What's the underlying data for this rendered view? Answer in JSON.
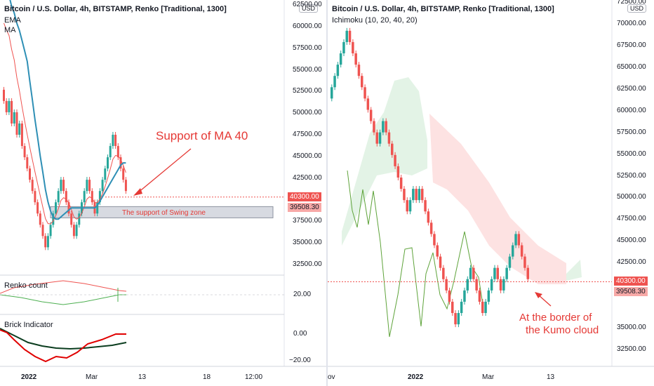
{
  "left": {
    "title": "Bitcoin / U.S. Dollar, 4h, BITSTAMP, Renko [Traditional, 1300]",
    "legend": [
      "EMA",
      "MA"
    ],
    "currency_badge": "USD",
    "price_axis": [
      "62500.00",
      "60000.00",
      "57500.00",
      "55000.00",
      "52500.00",
      "50000.00",
      "47500.00",
      "45000.00",
      "42500.00",
      "37500.00",
      "35000.00",
      "32500.00"
    ],
    "last_price": "40300.00",
    "secondary_price": "39508.30",
    "annotation_main": "Support of MA 40",
    "annotation_zone": "The support of Swing zone",
    "renko_count_label": "Renko count",
    "renko_count_value": "20.00",
    "brick_indicator_label": "Brick Indicator",
    "brick_axis": [
      "0.00",
      "−20.00"
    ],
    "time_axis": [
      "2022",
      "Mar",
      "13",
      "18",
      "12:00"
    ]
  },
  "right": {
    "title": "Bitcoin / U.S. Dollar, 4h, BITSTAMP, Renko [Traditional, 1300]",
    "legend": [
      "Ichimoku (10, 20, 40, 20)"
    ],
    "currency_badge": "USD",
    "price_axis": [
      "72500.00",
      "70000.00",
      "67500.00",
      "65000.00",
      "62500.00",
      "60000.00",
      "57500.00",
      "55000.00",
      "52500.00",
      "50000.00",
      "47500.00",
      "45000.00",
      "42500.00",
      "35000.00",
      "32500.00"
    ],
    "last_price": "40300.00",
    "secondary_price": "39508.30",
    "annotation": [
      "At the border of",
      "the Kumo cloud"
    ],
    "time_axis": [
      "ov",
      "2022",
      "Mar",
      "13"
    ]
  },
  "colors": {
    "up": "#26a69a",
    "down": "#ef5350",
    "ema": "#ef5350",
    "ma": "#2e8fb5",
    "annotation": "#e53935",
    "kumo_bull": "#e3f3e6",
    "kumo_bear": "#fde2e2",
    "chikou": "#5ea33a"
  },
  "chart_data": [
    {
      "type": "renko",
      "panel": "left",
      "title": "Bitcoin / U.S. Dollar, 4h, BITSTAMP, Renko [Traditional, 1300]",
      "brick_size": 1300,
      "indicators": [
        "EMA",
        "MA",
        "Renko count",
        "Brick Indicator"
      ],
      "ylim": [
        32500,
        62500
      ],
      "last_price": 40300,
      "support_zone": [
        37900,
        39200
      ],
      "bricks_close": [
        51400,
        50100,
        51400,
        48800,
        50100,
        47500,
        48800,
        46200,
        44900,
        43600,
        42300,
        41000,
        39700,
        38400,
        37100,
        35800,
        34500,
        35800,
        37100,
        38400,
        39700,
        41000,
        42300,
        41000,
        39700,
        38400,
        37100,
        35800,
        37100,
        38400,
        39700,
        41000,
        42300,
        41000,
        39700,
        38400,
        39700,
        41000,
        42300,
        43600,
        44900,
        46200,
        47500,
        46200,
        44900,
        43600,
        42300,
        41000
      ]
    },
    {
      "type": "renko",
      "panel": "right",
      "title": "Bitcoin / U.S. Dollar, 4h, BITSTAMP, Renko [Traditional, 1300]",
      "brick_size": 1300,
      "indicators": [
        "Ichimoku (10, 20, 40, 20)"
      ],
      "ylim": [
        32500,
        72500
      ],
      "last_price": 40300,
      "bricks_close": [
        62700,
        64000,
        65300,
        66600,
        67900,
        69200,
        67900,
        66600,
        65300,
        64000,
        62700,
        61400,
        60100,
        58800,
        57500,
        56200,
        57500,
        58800,
        57500,
        56200,
        54900,
        53600,
        52300,
        51000,
        49700,
        48400,
        49700,
        51000,
        49700,
        51000,
        49700,
        48400,
        47100,
        45800,
        44500,
        43200,
        41900,
        40600,
        39300,
        38000,
        36700,
        35400,
        36700,
        38000,
        39300,
        40600,
        41900,
        40600,
        39300,
        38000,
        36700,
        38000,
        39300,
        40600,
        41900,
        40600,
        39300,
        40600,
        41900,
        43200,
        44500,
        45800,
        44500,
        43200,
        41900,
        40600
      ]
    }
  ]
}
